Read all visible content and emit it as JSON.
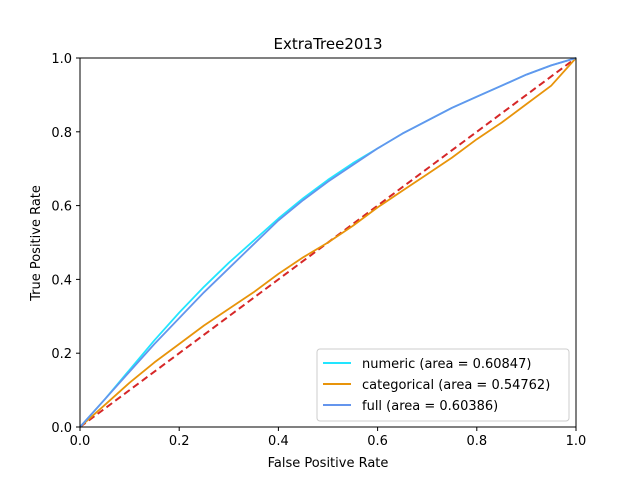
{
  "chart_data": {
    "type": "line",
    "title": "ExtraTree2013",
    "xlabel": "False Positive Rate",
    "ylabel": "True Positive Rate",
    "xlim": [
      0.0,
      1.0
    ],
    "ylim": [
      0.0,
      1.0
    ],
    "xticks": [
      "0.0",
      "0.2",
      "0.4",
      "0.6",
      "0.8",
      "1.0"
    ],
    "yticks": [
      "0.0",
      "0.2",
      "0.4",
      "0.6",
      "0.8",
      "1.0"
    ],
    "grid": false,
    "legend_position": "lower right",
    "series": [
      {
        "name": "numeric (area = 0.60847)",
        "color": "#22e5ff",
        "x": [
          0.0,
          0.05,
          0.1,
          0.15,
          0.2,
          0.25,
          0.3,
          0.35,
          0.4,
          0.45,
          0.5,
          0.55,
          0.6,
          0.65,
          0.7,
          0.75,
          0.8,
          0.85,
          0.9,
          0.95,
          1.0
        ],
        "y": [
          0.0,
          0.075,
          0.155,
          0.235,
          0.31,
          0.38,
          0.445,
          0.505,
          0.565,
          0.62,
          0.67,
          0.715,
          0.755,
          0.795,
          0.83,
          0.865,
          0.895,
          0.925,
          0.955,
          0.98,
          1.0
        ]
      },
      {
        "name": "categorical (area = 0.54762)",
        "color": "#e8940a",
        "x": [
          0.0,
          0.05,
          0.1,
          0.15,
          0.2,
          0.25,
          0.3,
          0.35,
          0.4,
          0.45,
          0.5,
          0.55,
          0.6,
          0.65,
          0.7,
          0.75,
          0.8,
          0.85,
          0.9,
          0.95,
          1.0
        ],
        "y": [
          0.0,
          0.06,
          0.12,
          0.175,
          0.225,
          0.275,
          0.32,
          0.365,
          0.415,
          0.46,
          0.5,
          0.545,
          0.595,
          0.64,
          0.685,
          0.73,
          0.78,
          0.825,
          0.875,
          0.925,
          1.0
        ]
      },
      {
        "name": "full (area = 0.60386)",
        "color": "#6495ed",
        "x": [
          0.0,
          0.05,
          0.1,
          0.15,
          0.2,
          0.25,
          0.3,
          0.35,
          0.4,
          0.45,
          0.5,
          0.55,
          0.6,
          0.65,
          0.7,
          0.75,
          0.8,
          0.85,
          0.9,
          0.95,
          1.0
        ],
        "y": [
          0.0,
          0.075,
          0.15,
          0.225,
          0.295,
          0.365,
          0.43,
          0.495,
          0.56,
          0.615,
          0.665,
          0.71,
          0.755,
          0.795,
          0.83,
          0.865,
          0.895,
          0.925,
          0.955,
          0.98,
          1.0
        ]
      }
    ],
    "reference_line": {
      "color": "#d62728",
      "style": "dashed",
      "x": [
        0.0,
        1.0
      ],
      "y": [
        0.0,
        1.0
      ]
    }
  }
}
